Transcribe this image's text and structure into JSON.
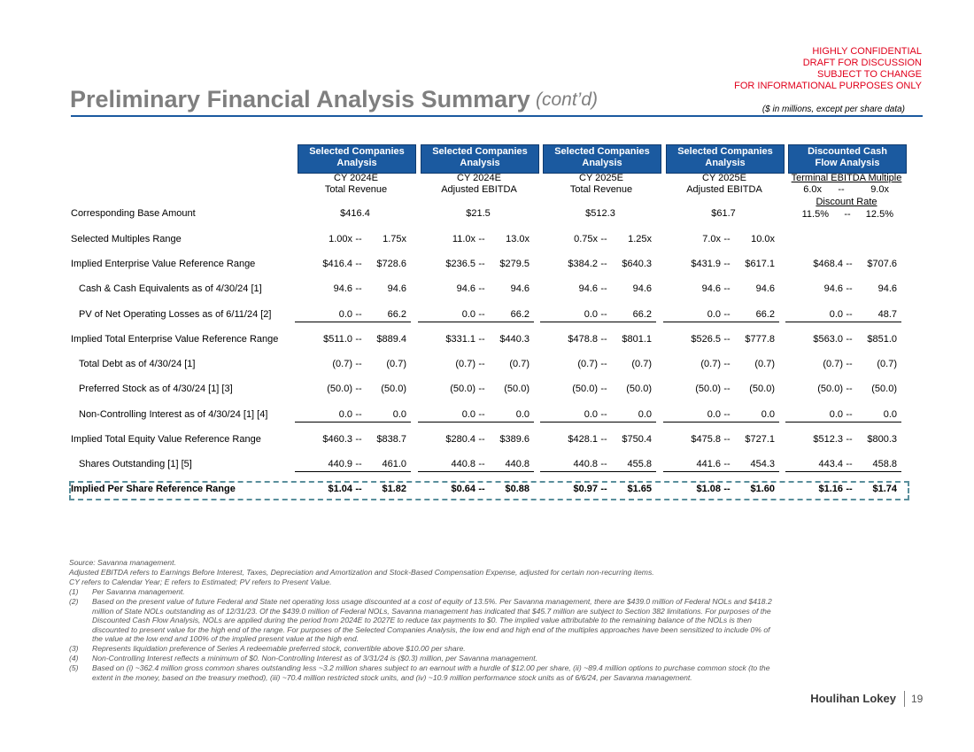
{
  "header": {
    "confidential": [
      "HIGHLY CONFIDENTIAL",
      "DRAFT FOR DISCUSSION",
      "SUBJECT TO CHANGE",
      "FOR INFORMATIONAL PURPOSES ONLY"
    ],
    "title": "Preliminary Financial Analysis Summary",
    "title_suffix": "(cont’d)",
    "units_note": "($ in millions, except per share data)"
  },
  "table": {
    "range_separator": "--",
    "columns": [
      {
        "title": "Selected Companies Analysis",
        "period": "CY 2024E",
        "metric": "Total Revenue"
      },
      {
        "title": "Selected Companies Analysis",
        "period": "CY 2024E",
        "metric": "Adjusted EBITDA"
      },
      {
        "title": "Selected Companies Analysis",
        "period": "CY 2025E",
        "metric": "Total Revenue"
      },
      {
        "title": "Selected Companies Analysis",
        "period": "CY 2025E",
        "metric": "Adjusted EBITDA"
      },
      {
        "title": "Discounted Cash Flow Analysis",
        "metric": "Terminal EBITDA Multiple",
        "low": "6.0x",
        "high": "9.0x",
        "metric2": "Discount Rate",
        "low2": "11.5%",
        "high2": "12.5%"
      }
    ],
    "rows": [
      {
        "label": "Corresponding Base Amount",
        "cells": [
          {
            "value": "$416.4"
          },
          {
            "value": "$21.5"
          },
          {
            "value": "$512.3"
          },
          {
            "value": "$61.7"
          },
          null
        ]
      },
      {
        "label": "Selected Multiples Range",
        "cells": [
          {
            "low": "1.00x",
            "high": "1.75x"
          },
          {
            "low": "11.0x",
            "high": "13.0x"
          },
          {
            "low": "0.75x",
            "high": "1.25x"
          },
          {
            "low": "7.0x",
            "high": "10.0x"
          },
          null
        ]
      },
      {
        "label": "Implied Enterprise Value Reference Range",
        "cells": [
          {
            "low": "$416.4",
            "high": "$728.6"
          },
          {
            "low": "$236.5",
            "high": "$279.5"
          },
          {
            "low": "$384.2",
            "high": "$640.3"
          },
          {
            "low": "$431.9",
            "high": "$617.1"
          },
          {
            "low": "$468.4",
            "high": "$707.6"
          }
        ]
      },
      {
        "label": "Cash & Cash Equivalents as of 4/30/24 [1]",
        "cells": [
          {
            "low": "94.6",
            "high": "94.6"
          },
          {
            "low": "94.6",
            "high": "94.6"
          },
          {
            "low": "94.6",
            "high": "94.6"
          },
          {
            "low": "94.6",
            "high": "94.6"
          },
          {
            "low": "94.6",
            "high": "94.6"
          }
        ]
      },
      {
        "label": "PV of Net Operating Losses as of 6/11/24 [2]",
        "cells": [
          {
            "low": "0.0",
            "high": "66.2"
          },
          {
            "low": "0.0",
            "high": "66.2"
          },
          {
            "low": "0.0",
            "high": "66.2"
          },
          {
            "low": "0.0",
            "high": "66.2"
          },
          {
            "low": "0.0",
            "high": "48.7"
          }
        ]
      },
      {
        "label": "Implied Total Enterprise Value Reference Range",
        "cells": [
          {
            "low": "$511.0",
            "high": "$889.4"
          },
          {
            "low": "$331.1",
            "high": "$440.3"
          },
          {
            "low": "$478.8",
            "high": "$801.1"
          },
          {
            "low": "$526.5",
            "high": "$777.8"
          },
          {
            "low": "$563.0",
            "high": "$851.0"
          }
        ]
      },
      {
        "label": "Total Debt as of 4/30/24 [1]",
        "cells": [
          {
            "low": "(0.7)",
            "high": "(0.7)"
          },
          {
            "low": "(0.7)",
            "high": "(0.7)"
          },
          {
            "low": "(0.7)",
            "high": "(0.7)"
          },
          {
            "low": "(0.7)",
            "high": "(0.7)"
          },
          {
            "low": "(0.7)",
            "high": "(0.7)"
          }
        ]
      },
      {
        "label": "Preferred Stock as of 4/30/24 [1] [3]",
        "cells": [
          {
            "low": "(50.0)",
            "high": "(50.0)"
          },
          {
            "low": "(50.0)",
            "high": "(50.0)"
          },
          {
            "low": "(50.0)",
            "high": "(50.0)"
          },
          {
            "low": "(50.0)",
            "high": "(50.0)"
          },
          {
            "low": "(50.0)",
            "high": "(50.0)"
          }
        ]
      },
      {
        "label": "Non-Controlling Interest as of 4/30/24 [1] [4]",
        "cells": [
          {
            "low": "0.0",
            "high": "0.0"
          },
          {
            "low": "0.0",
            "high": "0.0"
          },
          {
            "low": "0.0",
            "high": "0.0"
          },
          {
            "low": "0.0",
            "high": "0.0"
          },
          {
            "low": "0.0",
            "high": "0.0"
          }
        ]
      },
      {
        "label": "Implied Total Equity Value Reference Range",
        "cells": [
          {
            "low": "$460.3",
            "high": "$838.7"
          },
          {
            "low": "$280.4",
            "high": "$389.6"
          },
          {
            "low": "$428.1",
            "high": "$750.4"
          },
          {
            "low": "$475.8",
            "high": "$727.1"
          },
          {
            "low": "$512.3",
            "high": "$800.3"
          }
        ]
      },
      {
        "label": "Shares Outstanding [1] [5]",
        "cells": [
          {
            "low": "440.9",
            "high": "461.0"
          },
          {
            "low": "440.8",
            "high": "440.8"
          },
          {
            "low": "440.8",
            "high": "455.8"
          },
          {
            "low": "441.6",
            "high": "454.3"
          },
          {
            "low": "443.4",
            "high": "458.8"
          }
        ]
      },
      {
        "label": "Implied Per Share Reference Range",
        "cells": [
          {
            "low": "$1.04",
            "high": "$1.82"
          },
          {
            "low": "$0.64",
            "high": "$0.88"
          },
          {
            "low": "$0.97",
            "high": "$1.65"
          },
          {
            "low": "$1.08",
            "high": "$1.60"
          },
          {
            "low": "$1.16",
            "high": "$1.74"
          }
        ]
      }
    ]
  },
  "footnotes": {
    "notes": [
      "Source: Savanna management.",
      "Adjusted EBITDA refers to Earnings Before Interest, Taxes, Depreciation and Amortization and Stock-Based Compensation Expense, adjusted for certain non-recurring items.",
      "CY refers to Calendar Year; E refers to Estimated; PV refers to Present Value."
    ],
    "numbered": [
      {
        "marker": "(1)",
        "text": "Per Savanna management."
      },
      {
        "marker": "(2)",
        "text": "Based on the present value of future Federal and State net operating loss usage discounted at a cost of equity of 13.5%. Per Savanna management, there are $439.0 million of Federal NOLs and $418.2 million of State NOLs outstanding as of 12/31/23. Of the $439.0 million of Federal NOLs, Savanna management has indicated that $45.7 million are subject to Section 382 limitations. For purposes of the Discounted Cash Flow Analysis, NOLs are applied during the period from 2024E to 2027E to reduce tax payments to $0. The implied value attributable to the remaining balance of the NOLs is then discounted to present value for the high end of the range. For purposes of the Selected Companies Analysis, the low end and high end of the multiples approaches have been sensitized to include 0% of the value at the low end and 100% of the implied present value at the high end."
      },
      {
        "marker": "(3)",
        "text": "Represents liquidation preference of Series A redeemable preferred stock, convertible above $10.00 per share."
      },
      {
        "marker": "(4)",
        "text": "Non-Controlling Interest reflects a minimum of $0. Non-Controlling Interest as of 3/31/24 is ($0.3) million, per Savanna management."
      },
      {
        "marker": "(5)",
        "text": "Based on (i) ~362.4 million gross common shares outstanding less ~3.2 million shares subject to an earnout with a hurdle of $12.00 per share, (ii) ~89.4 million options to purchase common stock (to the extent in the money, based on the treasury method), (iii) ~70.4 million restricted stock units, and (iv) ~10.9 million performance stock units as of 6/6/24, per Savanna management."
      }
    ]
  },
  "footer": {
    "company": "Houlihan Lokey",
    "page": "19"
  }
}
